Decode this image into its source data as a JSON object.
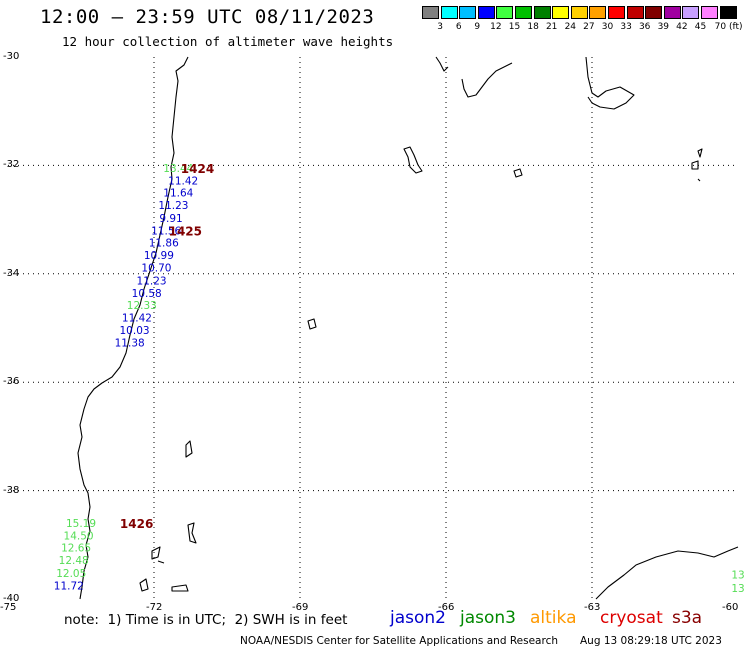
{
  "title": "12:00 – 23:59 UTC 08/11/2023",
  "subtitle": "12 hour collection of altimeter wave heights",
  "scale": {
    "labels": [
      "3",
      "6",
      "9",
      "12",
      "15",
      "18",
      "21",
      "24",
      "27",
      "30",
      "33",
      "36",
      "39",
      "42",
      "45",
      "70 (ft)"
    ],
    "colors": [
      "#808080",
      "#00ffff",
      "#00bfff",
      "#0000ff",
      "#40ff40",
      "#00c000",
      "#008000",
      "#ffff00",
      "#ffd000",
      "#ffa000",
      "#ff0000",
      "#c00000",
      "#800000",
      "#a000a0",
      "#c8a0ff",
      "#ff80ff",
      "#000000"
    ]
  },
  "map": {
    "lat_labels": [
      "-30",
      "-32",
      "-34",
      "-36",
      "-38",
      "-40"
    ],
    "lon_labels": [
      "-75",
      "-72",
      "-69",
      "-66",
      "-63",
      "-60"
    ]
  },
  "chart_data": {
    "type": "scatter",
    "xlim": [
      -75,
      -60
    ],
    "ylim": [
      -40,
      -30
    ],
    "grid": true,
    "units": "ft",
    "points": [
      {
        "lon": -71.5,
        "lat": -32.05,
        "value": "13.44",
        "sat": "jason3"
      },
      {
        "lon": -71.4,
        "lat": -32.28,
        "value": "11.42",
        "sat": "jason2"
      },
      {
        "lon": -71.5,
        "lat": -32.5,
        "value": "11.64",
        "sat": "jason2"
      },
      {
        "lon": -71.6,
        "lat": -32.73,
        "value": "11.23",
        "sat": "jason2"
      },
      {
        "lon": -71.65,
        "lat": -32.97,
        "value": "9.91",
        "sat": "jason2"
      },
      {
        "lon": -71.75,
        "lat": -33.2,
        "value": "11.56",
        "sat": "jason2"
      },
      {
        "lon": -71.8,
        "lat": -33.42,
        "value": "11.86",
        "sat": "jason2"
      },
      {
        "lon": -71.9,
        "lat": -33.65,
        "value": "10.99",
        "sat": "jason2"
      },
      {
        "lon": -71.95,
        "lat": -33.88,
        "value": "10.70",
        "sat": "jason2"
      },
      {
        "lon": -72.05,
        "lat": -34.12,
        "value": "11.23",
        "sat": "jason2"
      },
      {
        "lon": -72.15,
        "lat": -34.35,
        "value": "10.58",
        "sat": "jason2"
      },
      {
        "lon": -72.25,
        "lat": -34.58,
        "value": "12.33",
        "sat": "jason3"
      },
      {
        "lon": -72.35,
        "lat": -34.81,
        "value": "11.42",
        "sat": "jason2"
      },
      {
        "lon": -72.4,
        "lat": -35.04,
        "value": "10.03",
        "sat": "jason2"
      },
      {
        "lon": -72.5,
        "lat": -35.27,
        "value": "11.38",
        "sat": "jason2"
      },
      {
        "lon": -73.5,
        "lat": -38.6,
        "value": "15.19",
        "sat": "jason3"
      },
      {
        "lon": -73.55,
        "lat": -38.83,
        "value": "14.50",
        "sat": "jason3"
      },
      {
        "lon": -73.6,
        "lat": -39.05,
        "value": "12.65",
        "sat": "jason3"
      },
      {
        "lon": -73.65,
        "lat": -39.28,
        "value": "12.48",
        "sat": "jason3"
      },
      {
        "lon": -73.7,
        "lat": -39.52,
        "value": "12.05",
        "sat": "jason3"
      },
      {
        "lon": -73.75,
        "lat": -39.75,
        "value": "11.72",
        "sat": "jason2"
      },
      {
        "lon": -60.0,
        "lat": -39.55,
        "value": "13",
        "sat": "jason3"
      },
      {
        "lon": -60.0,
        "lat": -39.8,
        "value": "13",
        "sat": "jason3"
      }
    ],
    "time_labels": [
      {
        "lon": -71.45,
        "lat": -32.05,
        "value": "1424"
      },
      {
        "lon": -71.7,
        "lat": -33.2,
        "value": "1425"
      },
      {
        "lon": -72.7,
        "lat": -38.6,
        "value": "1426"
      }
    ]
  },
  "legend": {
    "note": "note:  1) Time is in UTC;  2) SWH is in feet",
    "satellites": [
      {
        "name": "jason2",
        "color": "#0000cc"
      },
      {
        "name": "jason3",
        "color": "#008800"
      },
      {
        "name": "altika",
        "color": "#ff9900"
      },
      {
        "name": "cryosat",
        "color": "#dd0000"
      },
      {
        "name": "s3a",
        "color": "#880000"
      }
    ]
  },
  "credit": "NOAA/NESDIS Center for Satellite Applications and Research",
  "timestamp": "Aug 13 08:29:18 UTC 2023",
  "colors": {
    "jason2": "#0000cc",
    "jason3": "#55dd55",
    "time_label": "#800000",
    "grid": "#000000"
  }
}
